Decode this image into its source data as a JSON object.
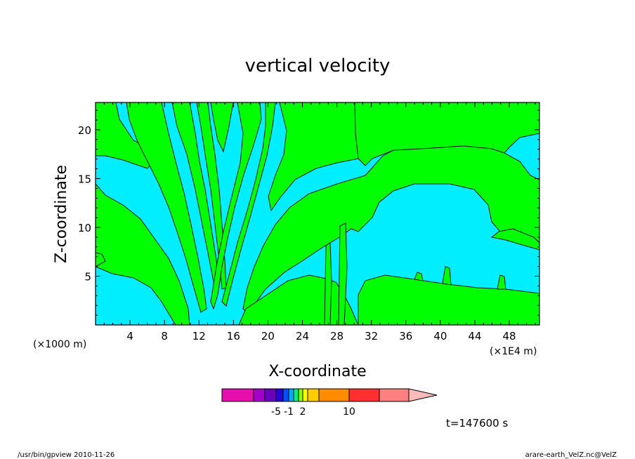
{
  "chart_data": {
    "type": "heatmap",
    "title": "vertical velocity",
    "xlabel": "X-coordinate",
    "ylabel": "Z-coordinate",
    "x_unit_left": "(×1000 m)",
    "x_unit_right": "(×1E4 m)",
    "x_ticks": [
      "4",
      "8",
      "12",
      "16",
      "20",
      "24",
      "28",
      "32",
      "36",
      "40",
      "44",
      "48"
    ],
    "y_ticks": [
      "5",
      "10",
      "15",
      "20"
    ],
    "xlim": [
      0,
      51.5
    ],
    "ylim": [
      0,
      22.8
    ],
    "fill_colors": {
      "positive": "#00ff00",
      "negative": "#00eeff"
    },
    "colorbar": {
      "colors": [
        "#e60fae",
        "#a000c8",
        "#6a00b8",
        "#2a00d8",
        "#0050ff",
        "#00aaff",
        "#00ee80",
        "#8fff00",
        "#ffff00",
        "#ffcc00",
        "#ff8c00",
        "#ff3030",
        "#ff8080",
        "#ffbbbb"
      ],
      "labels": [
        "-5",
        "-1",
        "2",
        "10"
      ]
    },
    "time_label": "t=147600 s",
    "footer_left": "/usr/bin/gpview  2010-11-26",
    "footer_right": "arare-earth_VelZ.nc@VelZ"
  }
}
